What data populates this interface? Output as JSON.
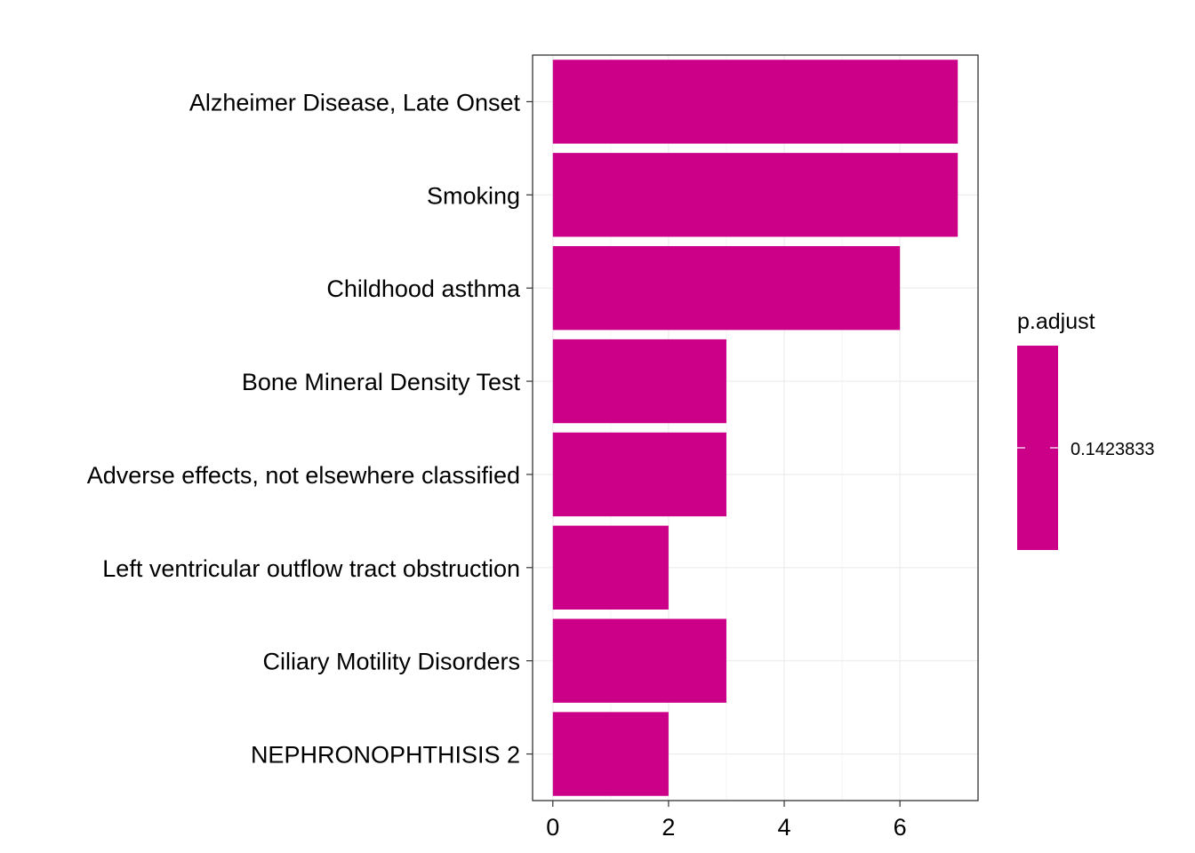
{
  "chart_data": {
    "type": "bar",
    "orientation": "horizontal",
    "categories": [
      "Alzheimer Disease, Late Onset",
      "Smoking",
      "Childhood asthma",
      "Bone Mineral Density Test",
      "Adverse effects, not elsewhere classified",
      "Left ventricular outflow tract obstruction",
      "Ciliary Motility Disorders",
      "NEPHRONOPHTHISIS 2"
    ],
    "values": [
      7,
      7,
      6,
      3,
      3,
      2,
      3,
      2
    ],
    "x_ticks": [
      "0",
      "2",
      "4",
      "6"
    ],
    "xlim": [
      -0.35,
      7.35
    ],
    "bar_color": "#CC0088",
    "grid": true,
    "legend": {
      "title": "p.adjust",
      "value_label": "0.1423833",
      "placement": "right"
    }
  }
}
